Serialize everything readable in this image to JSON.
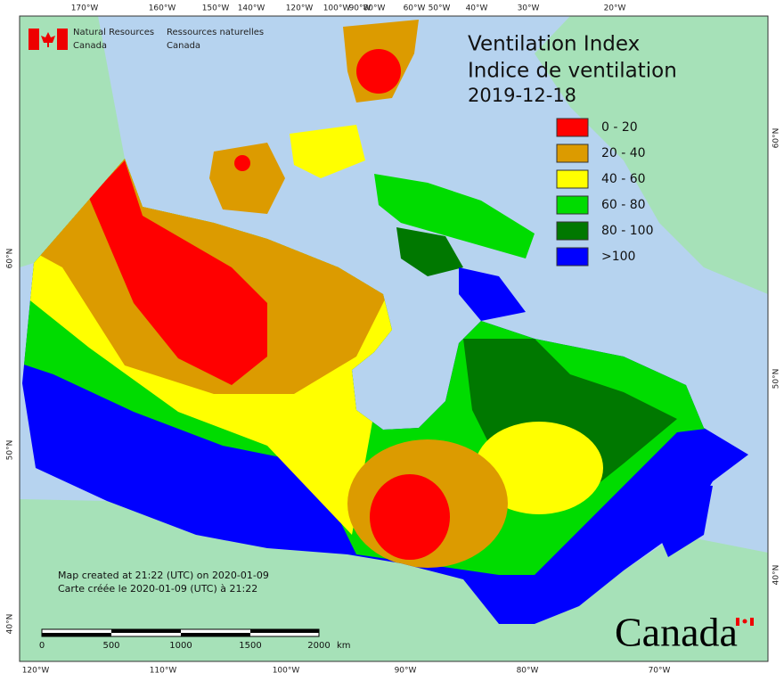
{
  "header": {
    "agency_en": [
      "Natural Resources",
      "Canada"
    ],
    "agency_fr": [
      "Ressources naturelles",
      "Canada"
    ]
  },
  "title": [
    "Ventilation Index",
    "Indice de ventilation"
  ],
  "date": "2019-12-18",
  "legend": [
    {
      "label": "0 - 20",
      "color": "#ff0000"
    },
    {
      "label": "20 - 40",
      "color": "#dc9b00"
    },
    {
      "label": "40 - 60",
      "color": "#ffff00"
    },
    {
      "label": "60 - 80",
      "color": "#00dc00"
    },
    {
      "label": "80 - 100",
      "color": "#007800"
    },
    {
      "label": ">100",
      "color": "#0000ff"
    }
  ],
  "graticule": {
    "top": [
      "170°W",
      "160°W",
      "150°W",
      "140°W",
      "120°W",
      "100°W",
      "90°W",
      "80°W",
      "60°W",
      "50°W",
      "40°W",
      "30°W",
      "20°W"
    ],
    "bottom": [
      "120°W",
      "110°W",
      "100°W",
      "90°W",
      "80°W",
      "70°W"
    ],
    "left": [
      "60°N",
      "50°N",
      "40°N"
    ],
    "right": [
      "60°N",
      "50°N",
      "40°N"
    ]
  },
  "footer": [
    "Map created at 21:22 (UTC) on 2020-01-09",
    "Carte créée le 2020-01-09 (UTC) à 21:22"
  ],
  "scale": {
    "labels": [
      "0",
      "500",
      "1000",
      "1500",
      "2000"
    ],
    "unit": "km"
  },
  "wordmark": "Canada"
}
